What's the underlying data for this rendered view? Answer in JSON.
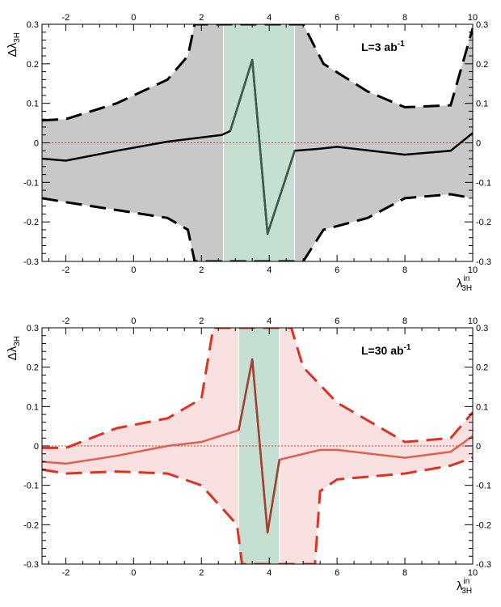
{
  "chart_data": [
    {
      "type": "line",
      "annotation": "L=3 ab",
      "annotation_exponent": "-1",
      "xlabel": "λ",
      "xlabel_sub": "3H",
      "xlabel_sup": "in",
      "ylabel": "Δλ",
      "ylabel_sub": "3H",
      "xlim": [
        -2.7,
        10
      ],
      "ylim": [
        -0.3,
        0.3
      ],
      "xticks": [
        "-2",
        "0",
        "2",
        "4",
        "6",
        "8",
        "10"
      ],
      "yticks": [
        "-0.3",
        "-0.2",
        "-0.1",
        "0",
        "0.1",
        "0.2",
        "0.3"
      ],
      "highlight_band": [
        2.65,
        4.75
      ],
      "colors": {
        "band": "#c8c8c8",
        "line": "#000000",
        "highlight": "#c5e0d2",
        "highlight_line": "#3d5d4d",
        "zero_line": "#cc4433"
      },
      "central": {
        "x": [
          -2.7,
          -2.0,
          -0.5,
          1.0,
          2.6,
          2.85,
          3.5,
          3.95,
          4.75,
          5.5,
          6.0,
          8.0,
          9.35,
          10.0
        ],
        "y": [
          -0.04,
          -0.045,
          -0.02,
          0.003,
          0.02,
          0.03,
          0.21,
          -0.23,
          -0.02,
          -0.015,
          -0.01,
          -0.03,
          -0.02,
          0.025
        ]
      },
      "upper": {
        "x": [
          -2.7,
          -2.0,
          -0.5,
          1.0,
          1.6,
          1.8,
          5.0,
          5.6,
          6.9,
          8.0,
          9.35,
          10.0
        ],
        "y": [
          0.057,
          0.06,
          0.1,
          0.16,
          0.22,
          0.3,
          0.3,
          0.2,
          0.13,
          0.09,
          0.095,
          0.29
        ]
      },
      "lower": {
        "x": [
          -2.7,
          -2.0,
          -0.5,
          1.0,
          1.6,
          1.8,
          5.0,
          5.6,
          6.9,
          8.0,
          9.35,
          10.0
        ],
        "y": [
          -0.14,
          -0.15,
          -0.17,
          -0.19,
          -0.22,
          -0.3,
          -0.3,
          -0.22,
          -0.19,
          -0.14,
          -0.13,
          -0.14
        ]
      },
      "highlight_central": {
        "x": [
          2.85,
          3.5,
          3.95,
          4.75
        ],
        "y": [
          0.03,
          0.21,
          -0.23,
          -0.02
        ]
      }
    },
    {
      "type": "line",
      "annotation": "L=30 ab",
      "annotation_exponent": "-1",
      "xlabel": "λ",
      "xlabel_sub": "3H",
      "xlabel_sup": "in",
      "ylabel": "Δλ",
      "ylabel_sub": "3H",
      "xlim": [
        -2.7,
        10
      ],
      "ylim": [
        -0.3,
        0.3
      ],
      "xticks": [
        "-2",
        "0",
        "2",
        "4",
        "6",
        "8",
        "10"
      ],
      "yticks": [
        "-0.3",
        "-0.2",
        "-0.1",
        "0",
        "0.1",
        "0.2",
        "0.3"
      ],
      "highlight_band": [
        3.1,
        4.3
      ],
      "colors": {
        "band": "#f8e1e0",
        "line": "#e06050",
        "highlight": "#c5e0d2",
        "highlight_line": "#a04030",
        "zero_line": "#cc4433",
        "dash": "#dd3322"
      },
      "central": {
        "x": [
          -2.7,
          -2.0,
          -0.5,
          1.0,
          2.0,
          3.1,
          3.5,
          3.95,
          4.3,
          5.5,
          6.0,
          8.0,
          9.35,
          10.0
        ],
        "y": [
          -0.04,
          -0.045,
          -0.025,
          0.0,
          0.01,
          0.04,
          0.22,
          -0.22,
          -0.035,
          -0.01,
          -0.01,
          -0.03,
          -0.015,
          0.025
        ]
      },
      "upper": {
        "x": [
          -2.7,
          -2.0,
          -0.5,
          1.0,
          2.0,
          2.35,
          2.5,
          4.65,
          5.0,
          6.0,
          8.0,
          9.35,
          10.0
        ],
        "y": [
          -0.005,
          -0.005,
          0.045,
          0.07,
          0.12,
          0.3,
          0.3,
          0.3,
          0.2,
          0.11,
          0.01,
          0.02,
          0.085
        ]
      },
      "lower": {
        "x": [
          -2.7,
          -2.0,
          -0.5,
          1.0,
          2.0,
          3.05,
          3.2,
          5.35,
          5.5,
          6.0,
          8.0,
          9.35,
          10.0
        ],
        "y": [
          -0.06,
          -0.07,
          -0.065,
          -0.07,
          -0.1,
          -0.2,
          -0.3,
          -0.3,
          -0.115,
          -0.085,
          -0.07,
          -0.05,
          -0.03
        ]
      },
      "highlight_central": {
        "x": [
          3.1,
          3.5,
          3.95,
          4.3
        ],
        "y": [
          0.04,
          0.22,
          -0.22,
          -0.035
        ]
      }
    }
  ]
}
